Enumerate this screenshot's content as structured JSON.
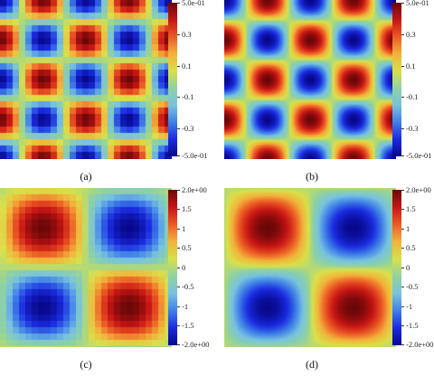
{
  "panels": [
    {
      "caption": "(a)",
      "colorbar_ticks": [
        "5.0e-01",
        "0.3",
        "0.1",
        "-0.1",
        "-0.3",
        "-5.0e-01"
      ],
      "field": "eight-lobe",
      "style": "coarse"
    },
    {
      "caption": "(b)",
      "colorbar_ticks": [
        "5.0e-01",
        "0.3",
        "0.1",
        "-0.1",
        "-0.3",
        "-5.0e-01"
      ],
      "field": "eight-lobe",
      "style": "smooth"
    },
    {
      "caption": "(c)",
      "colorbar_ticks": [
        "2.0e+00",
        "1.5",
        "1",
        "0.5",
        "0",
        "-0.5",
        "-1",
        "-1.5",
        "-2.0e+00"
      ],
      "field": "four-lobe",
      "style": "coarse"
    },
    {
      "caption": "(d)",
      "colorbar_ticks": [
        "2.0e+00",
        "1.5",
        "1",
        "0.5",
        "0",
        "-0.5",
        "-1",
        "-1.5",
        "-2.0e+00"
      ],
      "field": "four-lobe",
      "style": "smooth"
    }
  ],
  "colormap": [
    "#08088c",
    "#1a2be0",
    "#3f7fe8",
    "#78c2e0",
    "#8fd2a0",
    "#d9e04a",
    "#f2b23a",
    "#ec5a25",
    "#c71515",
    "#6b0707"
  ]
}
